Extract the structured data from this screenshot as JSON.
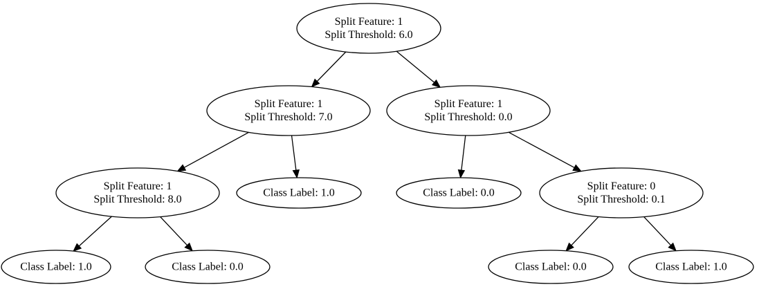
{
  "tree": {
    "nodes": [
      {
        "id": "n0",
        "lines": [
          "Split Feature: 1",
          "Split Threshold: 6.0"
        ]
      },
      {
        "id": "n1",
        "lines": [
          "Split Feature: 1",
          "Split Threshold: 7.0"
        ]
      },
      {
        "id": "n2",
        "lines": [
          "Split Feature: 1",
          "Split Threshold: 0.0"
        ]
      },
      {
        "id": "n3",
        "lines": [
          "Split Feature: 1",
          "Split Threshold: 8.0"
        ]
      },
      {
        "id": "n4",
        "lines": [
          "Class Label: 1.0"
        ]
      },
      {
        "id": "n5",
        "lines": [
          "Class Label: 0.0"
        ]
      },
      {
        "id": "n6",
        "lines": [
          "Split Feature: 0",
          "Split Threshold: 0.1"
        ]
      },
      {
        "id": "n7",
        "lines": [
          "Class Label: 1.0"
        ]
      },
      {
        "id": "n8",
        "lines": [
          "Class Label: 0.0"
        ]
      },
      {
        "id": "n9",
        "lines": [
          "Class Label: 0.0"
        ]
      },
      {
        "id": "n10",
        "lines": [
          "Class Label: 1.0"
        ]
      }
    ],
    "edges": [
      {
        "from": "n0",
        "to": "n1"
      },
      {
        "from": "n0",
        "to": "n2"
      },
      {
        "from": "n1",
        "to": "n3"
      },
      {
        "from": "n1",
        "to": "n4"
      },
      {
        "from": "n2",
        "to": "n5"
      },
      {
        "from": "n2",
        "to": "n6"
      },
      {
        "from": "n3",
        "to": "n7"
      },
      {
        "from": "n3",
        "to": "n8"
      },
      {
        "from": "n6",
        "to": "n9"
      },
      {
        "from": "n6",
        "to": "n10"
      }
    ]
  }
}
